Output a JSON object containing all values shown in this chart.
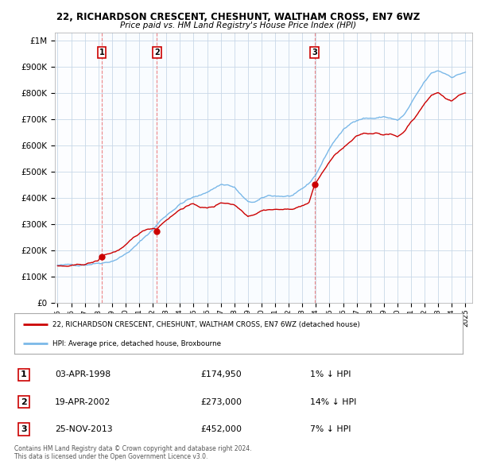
{
  "title_line1": "22, RICHARDSON CRESCENT, CHESHUNT, WALTHAM CROSS, EN7 6WZ",
  "title_line2": "Price paid vs. HM Land Registry's House Price Index (HPI)",
  "ylabel_ticks": [
    "£0",
    "£100K",
    "£200K",
    "£300K",
    "£400K",
    "£500K",
    "£600K",
    "£700K",
    "£800K",
    "£900K",
    "£1M"
  ],
  "ytick_values": [
    0,
    100000,
    200000,
    300000,
    400000,
    500000,
    600000,
    700000,
    800000,
    900000,
    1000000
  ],
  "xlim_start": 1994.8,
  "xlim_end": 2025.5,
  "ylim_min": 0,
  "ylim_max": 1000000,
  "hpi_color": "#7ab8e8",
  "price_color": "#cc0000",
  "vline_color": "#ee8888",
  "shade_color": "#ddeeff",
  "sale_points": [
    {
      "year": 1998.25,
      "price": 174950,
      "label": "1"
    },
    {
      "year": 2002.3,
      "price": 273000,
      "label": "2"
    },
    {
      "year": 2013.9,
      "price": 452000,
      "label": "3"
    }
  ],
  "legend_line1": "22, RICHARDSON CRESCENT, CHESHUNT, WALTHAM CROSS, EN7 6WZ (detached house)",
  "legend_line2": "HPI: Average price, detached house, Broxbourne",
  "table_rows": [
    {
      "num": "1",
      "date": "03-APR-1998",
      "price": "£174,950",
      "hpi": "1% ↓ HPI"
    },
    {
      "num": "2",
      "date": "19-APR-2002",
      "price": "£273,000",
      "hpi": "14% ↓ HPI"
    },
    {
      "num": "3",
      "date": "25-NOV-2013",
      "price": "£452,000",
      "hpi": "7% ↓ HPI"
    }
  ],
  "footnote": "Contains HM Land Registry data © Crown copyright and database right 2024.\nThis data is licensed under the Open Government Licence v3.0.",
  "background_color": "#ffffff",
  "grid_color": "#c8d8e8",
  "xtick_years": [
    1995,
    1996,
    1997,
    1998,
    1999,
    2000,
    2001,
    2002,
    2003,
    2004,
    2005,
    2006,
    2007,
    2008,
    2009,
    2010,
    2011,
    2012,
    2013,
    2014,
    2015,
    2016,
    2017,
    2018,
    2019,
    2020,
    2021,
    2022,
    2023,
    2024,
    2025
  ],
  "hpi_anchors": [
    [
      1995.0,
      143000
    ],
    [
      1995.5,
      141000
    ],
    [
      1996.0,
      142000
    ],
    [
      1996.5,
      143000
    ],
    [
      1997.0,
      148000
    ],
    [
      1997.5,
      153000
    ],
    [
      1998.0,
      158000
    ],
    [
      1998.5,
      163000
    ],
    [
      1999.0,
      170000
    ],
    [
      1999.5,
      183000
    ],
    [
      2000.0,
      198000
    ],
    [
      2000.5,
      218000
    ],
    [
      2001.0,
      240000
    ],
    [
      2001.5,
      265000
    ],
    [
      2002.0,
      290000
    ],
    [
      2002.5,
      320000
    ],
    [
      2003.0,
      345000
    ],
    [
      2003.5,
      368000
    ],
    [
      2004.0,
      390000
    ],
    [
      2004.5,
      405000
    ],
    [
      2005.0,
      415000
    ],
    [
      2005.5,
      420000
    ],
    [
      2006.0,
      435000
    ],
    [
      2006.5,
      450000
    ],
    [
      2007.0,
      465000
    ],
    [
      2007.5,
      465000
    ],
    [
      2008.0,
      455000
    ],
    [
      2008.5,
      425000
    ],
    [
      2009.0,
      395000
    ],
    [
      2009.5,
      395000
    ],
    [
      2010.0,
      405000
    ],
    [
      2010.5,
      415000
    ],
    [
      2011.0,
      415000
    ],
    [
      2011.5,
      415000
    ],
    [
      2012.0,
      415000
    ],
    [
      2012.5,
      420000
    ],
    [
      2013.0,
      435000
    ],
    [
      2013.5,
      455000
    ],
    [
      2014.0,
      490000
    ],
    [
      2014.5,
      540000
    ],
    [
      2015.0,
      590000
    ],
    [
      2015.5,
      630000
    ],
    [
      2016.0,
      660000
    ],
    [
      2016.5,
      680000
    ],
    [
      2017.0,
      700000
    ],
    [
      2017.5,
      710000
    ],
    [
      2018.0,
      710000
    ],
    [
      2018.5,
      710000
    ],
    [
      2019.0,
      715000
    ],
    [
      2019.5,
      710000
    ],
    [
      2020.0,
      700000
    ],
    [
      2020.5,
      720000
    ],
    [
      2021.0,
      760000
    ],
    [
      2021.5,
      800000
    ],
    [
      2022.0,
      840000
    ],
    [
      2022.5,
      870000
    ],
    [
      2023.0,
      880000
    ],
    [
      2023.5,
      870000
    ],
    [
      2024.0,
      860000
    ],
    [
      2024.5,
      870000
    ],
    [
      2025.0,
      880000
    ]
  ],
  "price_anchors": [
    [
      1995.0,
      140000
    ],
    [
      1995.5,
      138000
    ],
    [
      1996.0,
      138000
    ],
    [
      1996.5,
      139000
    ],
    [
      1997.0,
      142000
    ],
    [
      1997.5,
      148000
    ],
    [
      1998.0,
      155000
    ],
    [
      1998.25,
      174950
    ],
    [
      1998.5,
      178000
    ],
    [
      1999.0,
      185000
    ],
    [
      1999.5,
      196000
    ],
    [
      2000.0,
      210000
    ],
    [
      2000.5,
      232000
    ],
    [
      2001.0,
      253000
    ],
    [
      2001.5,
      268000
    ],
    [
      2002.0,
      275000
    ],
    [
      2002.3,
      273000
    ],
    [
      2002.5,
      285000
    ],
    [
      2003.0,
      310000
    ],
    [
      2003.5,
      330000
    ],
    [
      2004.0,
      350000
    ],
    [
      2004.5,
      365000
    ],
    [
      2005.0,
      370000
    ],
    [
      2005.5,
      360000
    ],
    [
      2006.0,
      355000
    ],
    [
      2006.5,
      360000
    ],
    [
      2007.0,
      375000
    ],
    [
      2007.5,
      375000
    ],
    [
      2008.0,
      370000
    ],
    [
      2008.5,
      350000
    ],
    [
      2009.0,
      330000
    ],
    [
      2009.5,
      340000
    ],
    [
      2010.0,
      355000
    ],
    [
      2010.5,
      360000
    ],
    [
      2011.0,
      360000
    ],
    [
      2011.5,
      360000
    ],
    [
      2012.0,
      358000
    ],
    [
      2012.5,
      365000
    ],
    [
      2013.0,
      375000
    ],
    [
      2013.5,
      385000
    ],
    [
      2013.9,
      452000
    ],
    [
      2014.0,
      460000
    ],
    [
      2014.5,
      500000
    ],
    [
      2015.0,
      540000
    ],
    [
      2015.5,
      570000
    ],
    [
      2016.0,
      590000
    ],
    [
      2016.5,
      610000
    ],
    [
      2017.0,
      630000
    ],
    [
      2017.5,
      640000
    ],
    [
      2018.0,
      640000
    ],
    [
      2018.5,
      645000
    ],
    [
      2019.0,
      640000
    ],
    [
      2019.5,
      640000
    ],
    [
      2020.0,
      630000
    ],
    [
      2020.5,
      650000
    ],
    [
      2021.0,
      690000
    ],
    [
      2021.5,
      720000
    ],
    [
      2022.0,
      760000
    ],
    [
      2022.5,
      790000
    ],
    [
      2023.0,
      800000
    ],
    [
      2023.5,
      780000
    ],
    [
      2024.0,
      770000
    ],
    [
      2024.5,
      790000
    ],
    [
      2025.0,
      800000
    ]
  ]
}
